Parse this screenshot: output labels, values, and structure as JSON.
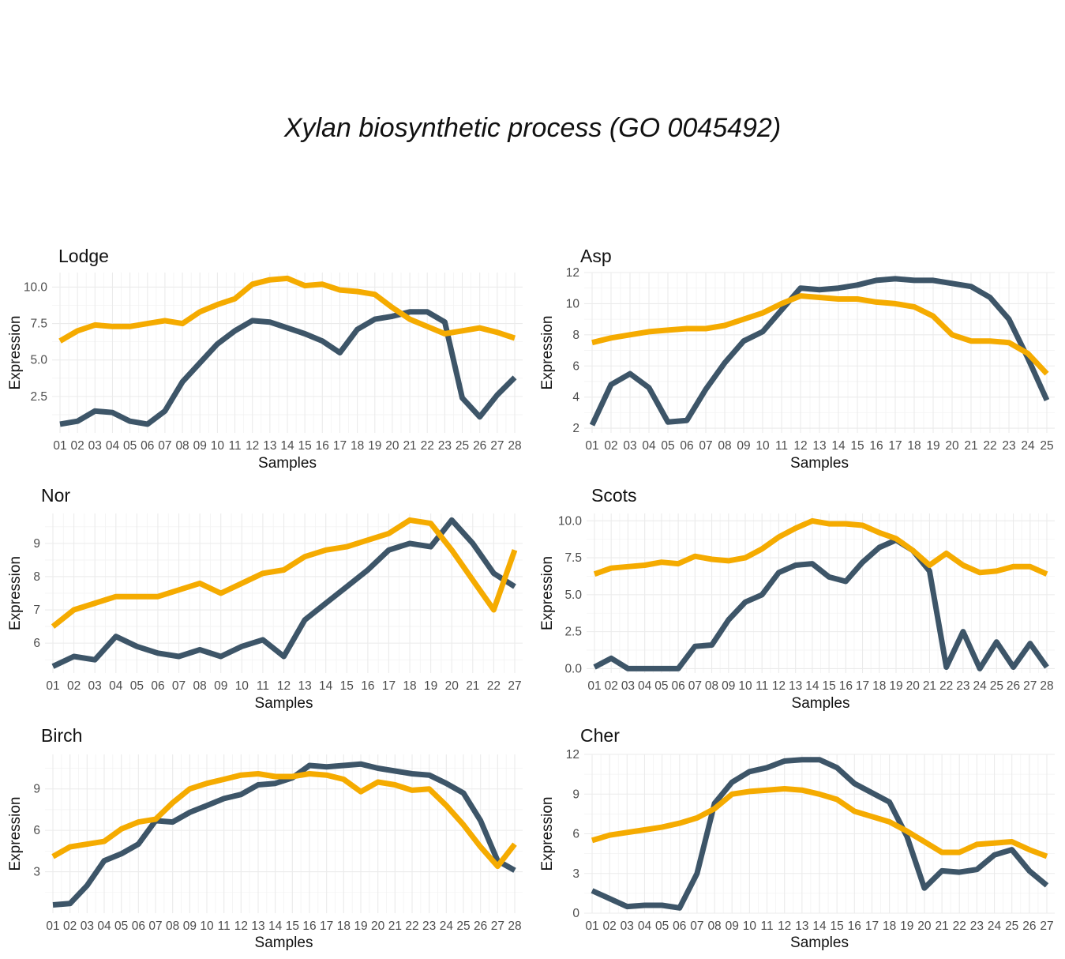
{
  "title": "Xylan biosynthetic process  (GO 0045492)",
  "colors": {
    "dark": "#3d5568",
    "gold": "#f5ab00"
  },
  "chart_data": [
    {
      "type": "line",
      "title": "Lodge",
      "xlabel": "Samples",
      "ylabel": "Expression",
      "categories": [
        "01",
        "02",
        "03",
        "04",
        "05",
        "06",
        "07",
        "08",
        "09",
        "10",
        "11",
        "12",
        "13",
        "14",
        "15",
        "16",
        "17",
        "18",
        "19",
        "20",
        "21",
        "22",
        "23",
        "25",
        "26",
        "27",
        "28"
      ],
      "ylim": [
        0,
        11
      ],
      "yticks": [
        2.5,
        5.0,
        7.5,
        10.0
      ],
      "ytick_labels": [
        "2.5",
        "5.0",
        "7.5",
        "10.0"
      ],
      "series": [
        {
          "color": "#3d5568",
          "values": [
            0.6,
            0.8,
            1.5,
            1.4,
            0.8,
            0.6,
            1.5,
            3.5,
            4.8,
            6.1,
            7.0,
            7.7,
            7.6,
            7.2,
            6.8,
            6.3,
            5.5,
            7.1,
            7.8,
            8.0,
            8.3,
            8.3,
            7.6,
            2.4,
            1.1,
            2.6,
            3.8
          ]
        },
        {
          "color": "#f5ab00",
          "values": [
            6.3,
            7.0,
            7.4,
            7.3,
            7.3,
            7.5,
            7.7,
            7.5,
            8.3,
            8.8,
            9.2,
            10.2,
            10.5,
            10.6,
            10.1,
            10.2,
            9.8,
            9.7,
            9.5,
            8.6,
            7.8,
            7.3,
            6.8,
            7.0,
            7.2,
            6.9,
            6.5
          ]
        }
      ]
    },
    {
      "type": "line",
      "title": "Asp",
      "xlabel": "Samples",
      "ylabel": "Expression",
      "categories": [
        "01",
        "02",
        "03",
        "04",
        "05",
        "06",
        "07",
        "08",
        "09",
        "10",
        "11",
        "12",
        "13",
        "14",
        "15",
        "16",
        "17",
        "18",
        "19",
        "20",
        "21",
        "22",
        "23",
        "24",
        "25"
      ],
      "ylim": [
        1.7,
        12
      ],
      "yticks": [
        2,
        4,
        6,
        8,
        10,
        12
      ],
      "ytick_labels": [
        "2",
        "4",
        "6",
        "8",
        "10",
        "12"
      ],
      "series": [
        {
          "color": "#3d5568",
          "values": [
            2.2,
            4.8,
            5.5,
            4.6,
            2.4,
            2.5,
            4.5,
            6.2,
            7.6,
            8.2,
            9.6,
            11.0,
            10.9,
            11.0,
            11.2,
            11.5,
            11.6,
            11.5,
            11.5,
            11.3,
            11.1,
            10.4,
            9.0,
            6.5,
            3.8
          ]
        },
        {
          "color": "#f5ab00",
          "values": [
            7.5,
            7.8,
            8.0,
            8.2,
            8.3,
            8.4,
            8.4,
            8.6,
            9.0,
            9.4,
            10.0,
            10.5,
            10.4,
            10.3,
            10.3,
            10.1,
            10.0,
            9.8,
            9.2,
            8.0,
            7.6,
            7.6,
            7.5,
            6.8,
            5.5
          ]
        }
      ]
    },
    {
      "type": "line",
      "title": "Nor",
      "xlabel": "Samples",
      "ylabel": "Expression",
      "categories": [
        "01",
        "02",
        "03",
        "04",
        "05",
        "06",
        "07",
        "08",
        "09",
        "10",
        "11",
        "12",
        "13",
        "14",
        "15",
        "16",
        "17",
        "18",
        "19",
        "20",
        "21",
        "22",
        "27"
      ],
      "ylim": [
        5.1,
        9.9
      ],
      "yticks": [
        6,
        7,
        8,
        9
      ],
      "ytick_labels": [
        "6",
        "7",
        "8",
        "9"
      ],
      "series": [
        {
          "color": "#3d5568",
          "values": [
            5.3,
            5.6,
            5.5,
            6.2,
            5.9,
            5.7,
            5.6,
            5.8,
            5.6,
            5.9,
            6.1,
            5.6,
            6.7,
            7.2,
            7.7,
            8.2,
            8.8,
            9.0,
            8.9,
            9.7,
            9.0,
            8.1,
            7.7
          ]
        },
        {
          "color": "#f5ab00",
          "values": [
            6.5,
            7.0,
            7.2,
            7.4,
            7.4,
            7.4,
            7.6,
            7.8,
            7.5,
            7.8,
            8.1,
            8.2,
            8.6,
            8.8,
            8.9,
            9.1,
            9.3,
            9.7,
            9.6,
            8.8,
            7.9,
            7.0,
            8.8
          ]
        }
      ]
    },
    {
      "type": "line",
      "title": "Scots",
      "xlabel": "Samples",
      "ylabel": "Expression",
      "categories": [
        "01",
        "02",
        "03",
        "04",
        "05",
        "06",
        "07",
        "08",
        "09",
        "10",
        "11",
        "12",
        "13",
        "14",
        "15",
        "16",
        "17",
        "18",
        "19",
        "20",
        "21",
        "22",
        "23",
        "24",
        "25",
        "26",
        "27",
        "28"
      ],
      "ylim": [
        -0.3,
        10.5
      ],
      "yticks": [
        0.0,
        2.5,
        5.0,
        7.5,
        10.0
      ],
      "ytick_labels": [
        "0.0",
        "2.5",
        "5.0",
        "7.5",
        "10.0"
      ],
      "series": [
        {
          "color": "#3d5568",
          "values": [
            0.1,
            0.7,
            0.0,
            0.0,
            0.0,
            0.0,
            1.5,
            1.6,
            3.3,
            4.5,
            5.0,
            6.5,
            7.0,
            7.1,
            6.2,
            5.9,
            7.2,
            8.2,
            8.7,
            8.0,
            6.6,
            0.1,
            2.5,
            0.0,
            1.8,
            0.1,
            1.7,
            0.1
          ]
        },
        {
          "color": "#f5ab00",
          "values": [
            6.4,
            6.8,
            6.9,
            7.0,
            7.2,
            7.1,
            7.6,
            7.4,
            7.3,
            7.5,
            8.1,
            8.9,
            9.5,
            10.0,
            9.8,
            9.8,
            9.7,
            9.2,
            8.8,
            8.0,
            7.0,
            7.8,
            7.0,
            6.5,
            6.6,
            6.9,
            6.9,
            6.4
          ]
        }
      ]
    },
    {
      "type": "line",
      "title": "Birch",
      "xlabel": "Samples",
      "ylabel": "Expression",
      "categories": [
        "01",
        "02",
        "03",
        "04",
        "05",
        "06",
        "07",
        "08",
        "09",
        "10",
        "11",
        "12",
        "13",
        "14",
        "15",
        "16",
        "17",
        "18",
        "19",
        "20",
        "21",
        "22",
        "23",
        "24",
        "25",
        "26",
        "27",
        "28"
      ],
      "ylim": [
        0,
        11.5
      ],
      "yticks": [
        3,
        6,
        9
      ],
      "ytick_labels": [
        "3",
        "6",
        "9"
      ],
      "series": [
        {
          "color": "#3d5568",
          "values": [
            0.6,
            0.7,
            2.0,
            3.8,
            4.3,
            5.0,
            6.7,
            6.6,
            7.3,
            7.8,
            8.3,
            8.6,
            9.3,
            9.4,
            9.8,
            10.7,
            10.6,
            10.7,
            10.8,
            10.5,
            10.3,
            10.1,
            10.0,
            9.4,
            8.7,
            6.7,
            3.8,
            3.1
          ]
        },
        {
          "color": "#f5ab00",
          "values": [
            4.1,
            4.8,
            5.0,
            5.2,
            6.1,
            6.6,
            6.8,
            8.0,
            9.0,
            9.4,
            9.7,
            10.0,
            10.1,
            9.9,
            9.9,
            10.1,
            10.0,
            9.7,
            8.8,
            9.5,
            9.3,
            8.9,
            9.0,
            7.8,
            6.4,
            4.8,
            3.4,
            5.0
          ]
        }
      ]
    },
    {
      "type": "line",
      "title": "Cher",
      "xlabel": "Samples",
      "ylabel": "Expression",
      "categories": [
        "01",
        "02",
        "03",
        "04",
        "05",
        "06",
        "07",
        "08",
        "09",
        "10",
        "11",
        "12",
        "13",
        "14",
        "15",
        "16",
        "17",
        "18",
        "19",
        "20",
        "21",
        "22",
        "23",
        "24",
        "25",
        "26",
        "27"
      ],
      "ylim": [
        0,
        12
      ],
      "yticks": [
        0,
        3,
        6,
        9,
        12
      ],
      "ytick_labels": [
        "0",
        "3",
        "6",
        "9",
        "12"
      ],
      "series": [
        {
          "color": "#3d5568",
          "values": [
            1.7,
            1.1,
            0.5,
            0.6,
            0.6,
            0.4,
            3.0,
            8.3,
            9.9,
            10.7,
            11.0,
            11.5,
            11.6,
            11.6,
            11.0,
            9.8,
            9.1,
            8.4,
            5.8,
            1.9,
            3.2,
            3.1,
            3.3,
            4.4,
            4.8,
            3.2,
            2.1
          ]
        },
        {
          "color": "#f5ab00",
          "values": [
            5.5,
            5.9,
            6.1,
            6.3,
            6.5,
            6.8,
            7.2,
            7.9,
            9.0,
            9.2,
            9.3,
            9.4,
            9.3,
            9.0,
            8.6,
            7.7,
            7.3,
            6.9,
            6.2,
            5.4,
            4.6,
            4.6,
            5.2,
            5.3,
            5.4,
            4.8,
            4.3
          ]
        }
      ]
    }
  ]
}
